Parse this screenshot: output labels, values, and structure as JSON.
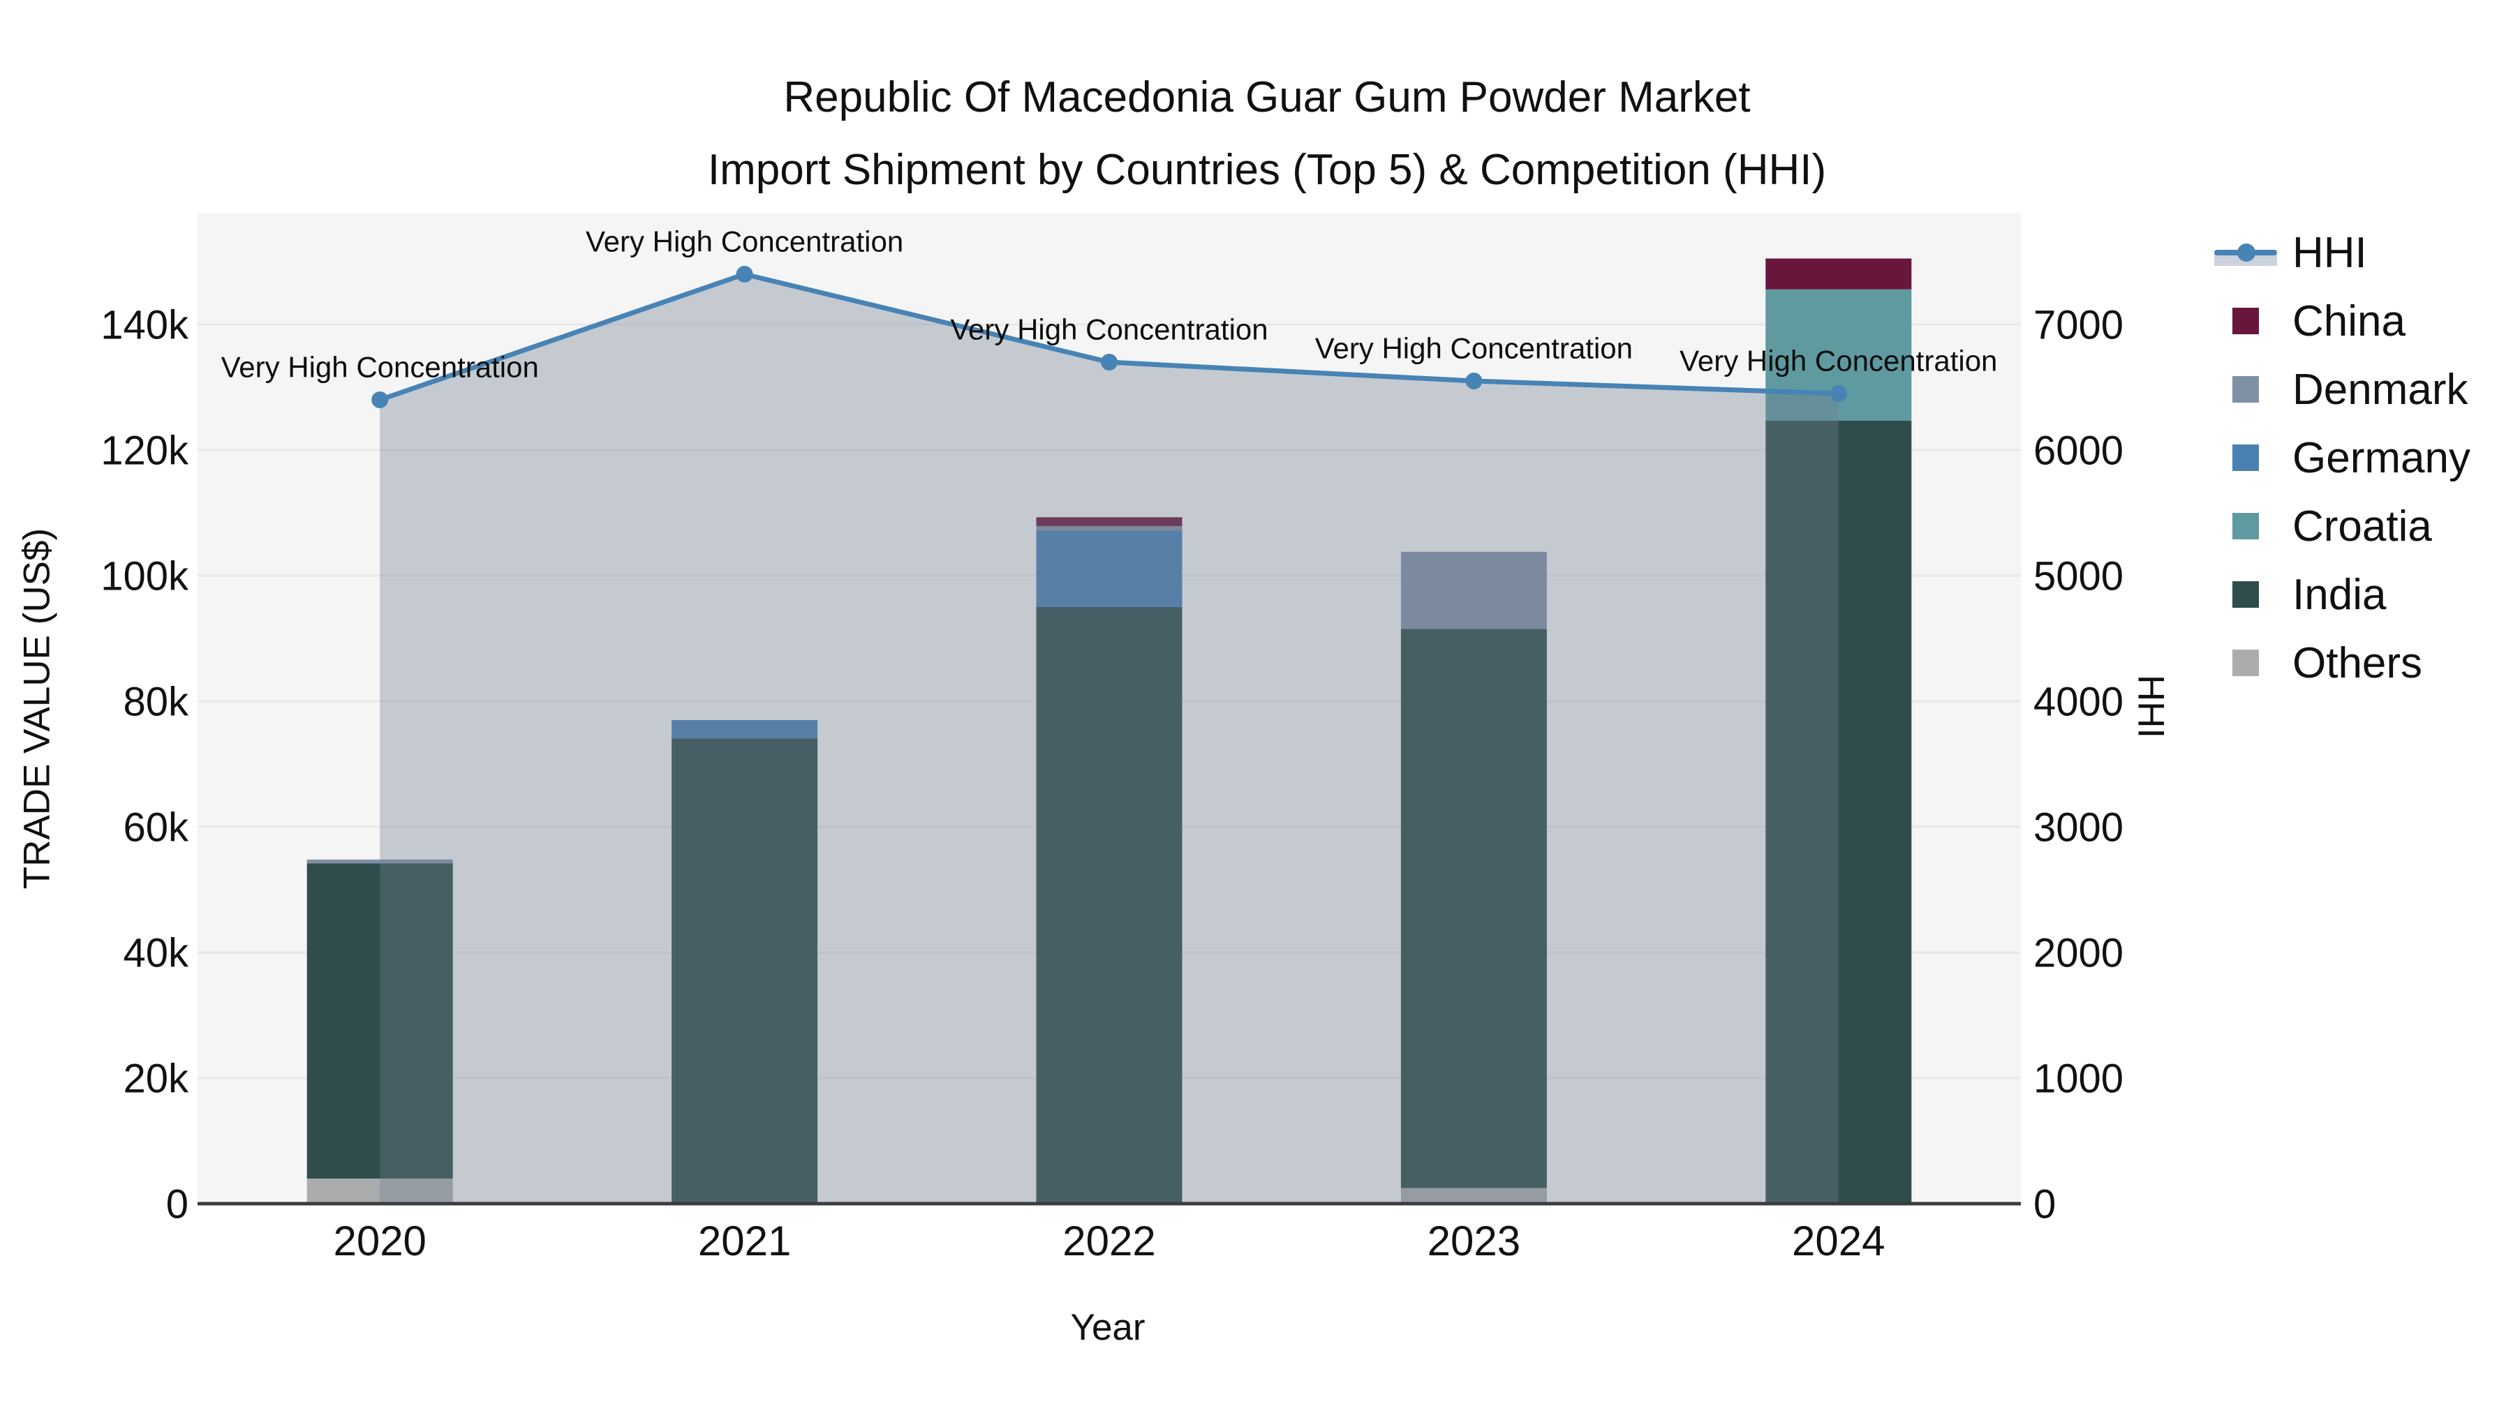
{
  "title": {
    "line1": "Republic Of Macedonia Guar Gum Powder Market",
    "line2": "Import Shipment by Countries (Top 5) & Competition (HHI)"
  },
  "axes": {
    "x": {
      "title": "Year",
      "tick_labels": [
        "2020",
        "2021",
        "2022",
        "2023",
        "2024"
      ]
    },
    "y_left": {
      "title": "TRADE VALUE (US$)",
      "tick_labels": [
        "0",
        "20k",
        "40k",
        "60k",
        "80k",
        "100k",
        "120k",
        "140k"
      ],
      "tick_values": [
        0,
        20000,
        40000,
        60000,
        80000,
        100000,
        120000,
        140000
      ],
      "max_gridline": 140000
    },
    "y_right": {
      "title": "HHI",
      "tick_labels": [
        "0",
        "1000",
        "2000",
        "3000",
        "4000",
        "5000",
        "6000",
        "7000"
      ],
      "tick_values": [
        0,
        1000,
        2000,
        3000,
        4000,
        5000,
        6000,
        7000
      ],
      "max_gridline": 7000
    }
  },
  "chart_data": {
    "type": "bar+line",
    "categories": [
      "2020",
      "2021",
      "2022",
      "2023",
      "2024"
    ],
    "bar_units": "US$",
    "series": [
      {
        "name": "Others",
        "color": "#aaacae",
        "values": [
          4000,
          0,
          0,
          2500,
          0
        ]
      },
      {
        "name": "India",
        "color": "#2e4d4b",
        "values": [
          50200,
          74100,
          95000,
          89000,
          124700
        ]
      },
      {
        "name": "Croatia",
        "color": "#5f9aa0",
        "values": [
          0,
          0,
          0,
          0,
          20900
        ]
      },
      {
        "name": "Germany",
        "color": "#4a81b1",
        "values": [
          0,
          2900,
          12200,
          0,
          0
        ]
      },
      {
        "name": "Denmark",
        "color": "#8090a4",
        "values": [
          600,
          0,
          700,
          12300,
          0
        ]
      },
      {
        "name": "China",
        "color": "#68163c",
        "values": [
          0,
          0,
          1400,
          0,
          4900
        ]
      }
    ],
    "stack_totals": [
      54800,
      77000,
      109300,
      103800,
      150500
    ],
    "hhi": {
      "name": "HHI",
      "color": "#4783b5",
      "area_color": "rgba(113,127,148,0.36)",
      "values": [
        6400,
        7400,
        6700,
        6550,
        6450
      ]
    },
    "annotations": [
      {
        "category": "2020",
        "text": "Very High Concentration"
      },
      {
        "category": "2021",
        "text": "Very High Concentration"
      },
      {
        "category": "2022",
        "text": "Very High Concentration"
      },
      {
        "category": "2023",
        "text": "Very High Concentration"
      },
      {
        "category": "2024",
        "text": "Very High Concentration"
      }
    ],
    "legend_order": [
      "HHI",
      "China",
      "Denmark",
      "Germany",
      "Croatia",
      "India",
      "Others"
    ],
    "plot_bg": "#f5f5f5",
    "grid_color": "#e8e8ea",
    "axis_line_color": "#3c3c3c"
  }
}
